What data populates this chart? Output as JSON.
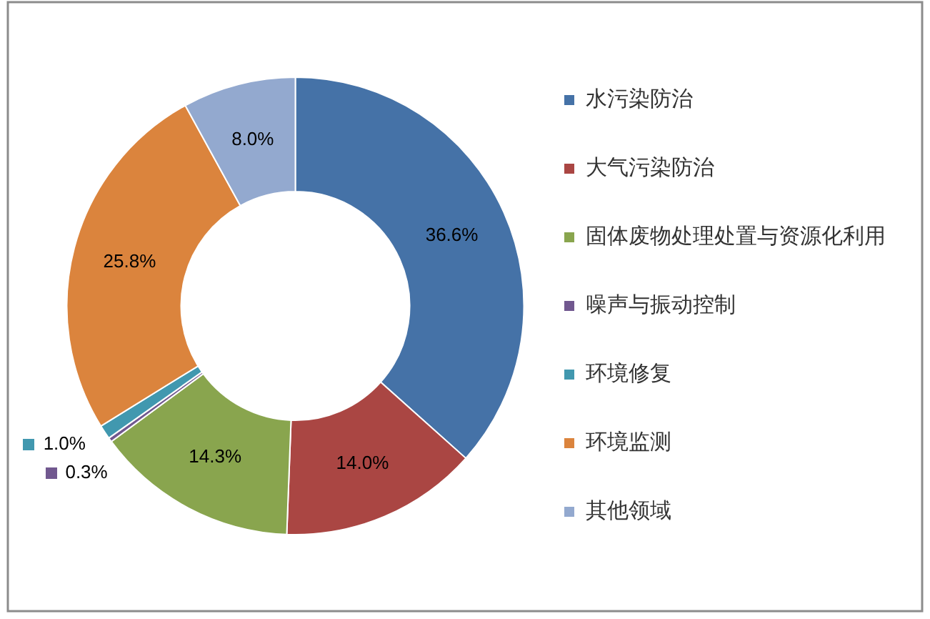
{
  "chart_data": {
    "type": "donut",
    "categories": [
      "水污染防治",
      "大气污染防治",
      "固体废物处理处置与资源化利用",
      "噪声与振动控制",
      "环境修复",
      "环境监测",
      "其他领域"
    ],
    "values": [
      36.6,
      14.0,
      14.3,
      0.3,
      1.0,
      25.8,
      8.0
    ],
    "colors": [
      "#4572a7",
      "#aa4643",
      "#89a54e",
      "#71588f",
      "#4198af",
      "#db843d",
      "#93a9cf"
    ],
    "value_labels": [
      "36.6%",
      "14.0%",
      "14.3%",
      "0.3%",
      "1.0%",
      "25.8%",
      "8.0%"
    ],
    "legend": "right"
  }
}
